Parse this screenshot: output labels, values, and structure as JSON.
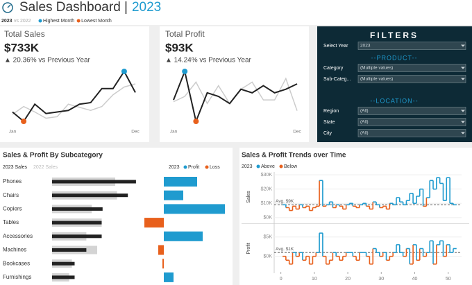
{
  "header": {
    "title": "Sales Dashboard |",
    "year": "2023",
    "compare": [
      "2023",
      "vs 2022"
    ],
    "legend": [
      {
        "label": "Highest Month",
        "color": "#1f9bcf"
      },
      {
        "label": "Lowest Month",
        "color": "#e8601c"
      }
    ]
  },
  "filters": {
    "title": "FILTERS",
    "year": {
      "label": "Select Year",
      "value": "2023"
    },
    "sections": [
      {
        "title": "--PRODUCT--",
        "fields": [
          {
            "label": "Category",
            "value": "(Multiple values)"
          },
          {
            "label": "Sub-Categ...",
            "value": "(Multiple values)"
          }
        ]
      },
      {
        "title": "--LOCATION--",
        "fields": [
          {
            "label": "Region",
            "value": "(All)"
          },
          {
            "label": "State",
            "value": "(All)"
          },
          {
            "label": "City",
            "value": "(All)"
          }
        ]
      }
    ]
  },
  "chart_data": [
    {
      "type": "line",
      "title": "Total Sales",
      "value_label": "$733K",
      "change": "▲ 20.36% vs Previous Year",
      "categories": [
        "Jan",
        null,
        null,
        null,
        null,
        null,
        null,
        null,
        null,
        null,
        null,
        "Dec"
      ],
      "series": [
        {
          "name": "2023",
          "color": "#222222",
          "values": [
            48,
            36,
            58,
            46,
            48,
            50,
            58,
            60,
            78,
            78,
            100,
            73
          ]
        },
        {
          "name": "2022",
          "color": "#cccccc",
          "values": [
            45,
            55,
            48,
            40,
            42,
            58,
            54,
            50,
            55,
            70,
            80,
            84
          ]
        }
      ]
    },
    {
      "type": "line",
      "title": "Total Profit",
      "value_label": "$93K",
      "change": "▲ 14.24% vs Previous Year",
      "categories": [
        "Jan",
        null,
        null,
        null,
        null,
        null,
        null,
        null,
        null,
        null,
        null,
        "Dec"
      ],
      "series": [
        {
          "name": "2023",
          "color": "#222222",
          "values": [
            4,
            20,
            -8,
            8,
            6,
            2,
            10,
            8,
            12,
            8,
            10,
            13
          ]
        },
        {
          "name": "2022",
          "color": "#cccccc",
          "values": [
            3,
            6,
            14,
            2,
            12,
            2,
            10,
            14,
            4,
            4,
            16,
            -2
          ]
        }
      ]
    },
    {
      "type": "bar",
      "title": "Sales & Profit By Subcategory",
      "categories": [
        "Phones",
        "Chairs",
        "Copiers",
        "Tables",
        "Accessories",
        "Machines",
        "Bookcases",
        "Furnishings"
      ],
      "series": [
        {
          "name": "2023 Sales",
          "color": "#222222",
          "values": [
            93,
            84,
            56,
            55,
            55,
            38,
            25,
            25
          ]
        },
        {
          "name": "2022 Sales",
          "color": "#d4d4d4",
          "values": [
            70,
            72,
            44,
            55,
            38,
            50,
            22,
            19
          ]
        },
        {
          "name": "Profit",
          "color": "#1f9bcf",
          "values": [
            12,
            7,
            22,
            -7,
            14,
            -2,
            -0.5,
            3.5
          ]
        }
      ],
      "legend_prefix": "2023",
      "negative_name": "Loss",
      "negative_color": "#e8601c"
    },
    {
      "type": "step",
      "title": "Sales & Profit Trends over Time",
      "legend_prefix": "2023",
      "above": {
        "name": "Above",
        "color": "#1f9bcf"
      },
      "below": {
        "name": "Below",
        "color": "#e8601c"
      },
      "x": [
        1,
        2,
        3,
        4,
        5,
        6,
        7,
        8,
        9,
        10,
        11,
        12,
        13,
        14,
        15,
        16,
        17,
        18,
        19,
        20,
        21,
        22,
        23,
        24,
        25,
        26,
        27,
        28,
        29,
        30,
        31,
        32,
        33,
        34,
        35,
        36,
        37,
        38,
        39,
        40,
        41,
        42,
        43,
        44,
        45,
        46,
        47,
        48,
        49,
        50,
        51,
        52
      ],
      "xlim": [
        -2,
        54
      ],
      "xticks": [
        0,
        10,
        20,
        30,
        40,
        50
      ],
      "panels": [
        {
          "ylabel": "Sales",
          "ylim": [
            -3,
            32
          ],
          "yticks": [
            {
              "value": 30,
              "label": "$30K"
            },
            {
              "value": 20,
              "label": "$20K"
            },
            {
              "value": 10,
              "label": "$10K"
            },
            {
              "value": 0,
              "label": "$0K"
            }
          ],
          "avg": {
            "value": 9,
            "label": "Avg. $9K"
          },
          "values": [
            9,
            7,
            5,
            8,
            6,
            9,
            7,
            8,
            5,
            7,
            8,
            26,
            8,
            9,
            11,
            7,
            9,
            8,
            6,
            9,
            10,
            8,
            7,
            9,
            10,
            8,
            6,
            11,
            9,
            7,
            8,
            6,
            10,
            9,
            14,
            11,
            9,
            12,
            17,
            10,
            15,
            20,
            8,
            14,
            26,
            20,
            28,
            24,
            12,
            28,
            10,
            9
          ]
        },
        {
          "ylabel": "Profit",
          "ylim": [
            -4,
            8
          ],
          "yticks": [
            {
              "value": 5,
              "label": "$5K"
            },
            {
              "value": 0,
              "label": "$0K"
            }
          ],
          "avg": {
            "value": 1,
            "label": "Avg. $1K"
          },
          "values": [
            0,
            -1,
            -2,
            1,
            0,
            1,
            -1,
            0,
            -2,
            0,
            1,
            6,
            0,
            -2,
            -1,
            1,
            0,
            -1,
            0,
            1,
            1,
            0,
            -1,
            1,
            1,
            0,
            -2,
            2,
            1,
            0,
            1,
            -1,
            0,
            1,
            3,
            1,
            0,
            2,
            -2,
            3,
            -1,
            2,
            0,
            1,
            4,
            -2,
            3,
            4,
            0,
            3,
            1,
            2
          ]
        }
      ]
    }
  ]
}
